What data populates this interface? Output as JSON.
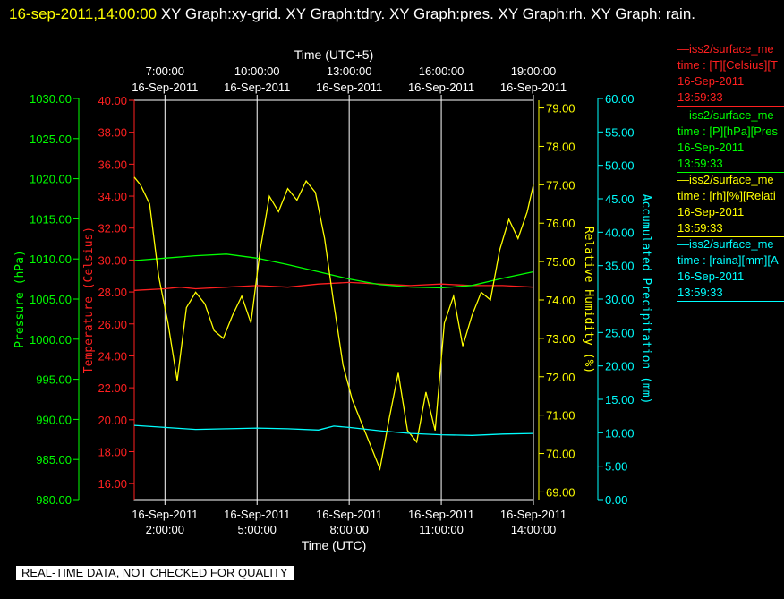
{
  "header": {
    "timestamp": "16-sep-2011,14:00:00",
    "title_rest": " XY Graph:xy-grid.  XY Graph:tdry.  XY Graph:pres.  XY Graph:rh.  XY Graph: rain."
  },
  "footer": {
    "notice": "REAL-TIME DATA, NOT CHECKED FOR QUALITY"
  },
  "legend": [
    {
      "name": "iss2/surface_me",
      "desc": "time : [T][Celsius][T",
      "date": "16-Sep-2011",
      "time": "13:59:33",
      "color": "#ff2020"
    },
    {
      "name": "iss2/surface_me",
      "desc": "time : [P][hPa][Pres",
      "date": "16-Sep-2011",
      "time": "13:59:33",
      "color": "#00ff00"
    },
    {
      "name": "iss2/surface_me",
      "desc": "time : [rh][%][Relati",
      "date": "16-Sep-2011",
      "time": "13:59:33",
      "color": "#ffff00"
    },
    {
      "name": "iss2/surface_me",
      "desc": "time : [raina][mm][A",
      "date": "16-Sep-2011",
      "time": "13:59:33",
      "color": "#00ffff"
    }
  ],
  "colors": {
    "temperature": "#ff2020",
    "pressure": "#00ff00",
    "humidity": "#ffff00",
    "precip": "#00ffff",
    "grid": "#ffffff"
  },
  "chart_data": {
    "type": "line",
    "xlabel": "Time (UTC)",
    "xlabel_top": "Time (UTC+5)",
    "x_range_hours": [
      1.0,
      14.0
    ],
    "x_ticks": [
      {
        "hour": 2,
        "date": "16-Sep-2011",
        "time": "2:00:00"
      },
      {
        "hour": 5,
        "date": "16-Sep-2011",
        "time": "5:00:00"
      },
      {
        "hour": 8,
        "date": "16-Sep-2011",
        "time": "8:00:00"
      },
      {
        "hour": 11,
        "date": "16-Sep-2011",
        "time": "11:00:00"
      },
      {
        "hour": 14,
        "date": "16-Sep-2011",
        "time": "14:00:00"
      }
    ],
    "x_ticks_top": [
      {
        "hour": 2,
        "time": "7:00:00",
        "date": "16-Sep-2011"
      },
      {
        "hour": 5,
        "time": "10:00:00",
        "date": "16-Sep-2011"
      },
      {
        "hour": 8,
        "time": "13:00:00",
        "date": "16-Sep-2011"
      },
      {
        "hour": 11,
        "time": "16:00:00",
        "date": "16-Sep-2011"
      },
      {
        "hour": 14,
        "time": "19:00:00",
        "date": "16-Sep-2011"
      }
    ],
    "axes": {
      "pressure": {
        "label": "Pressure (hPa)",
        "range": [
          980,
          1030
        ],
        "ticks": [
          "980.00",
          "985.00",
          "990.00",
          "995.00",
          "1000.00",
          "1005.00",
          "1010.00",
          "1015.00",
          "1020.00",
          "1025.00",
          "1030.00"
        ]
      },
      "temperature": {
        "label": "Temperature (Celsius)",
        "range": [
          15,
          40
        ],
        "ticks": [
          "16.00",
          "18.00",
          "20.00",
          "22.00",
          "24.00",
          "26.00",
          "28.00",
          "30.00",
          "32.00",
          "34.00",
          "36.00",
          "38.00",
          "40.00"
        ]
      },
      "humidity": {
        "label": "Relative Humidity (%)",
        "range": [
          68.8,
          79.2
        ],
        "ticks": [
          "69.00",
          "70.00",
          "71.00",
          "72.00",
          "73.00",
          "74.00",
          "75.00",
          "76.00",
          "77.00",
          "78.00",
          "79.00"
        ]
      },
      "precip": {
        "label": "Accumulated Precipitation (mm)",
        "range": [
          0,
          60
        ],
        "ticks": [
          "0.00",
          "5.00",
          "10.00",
          "15.00",
          "20.00",
          "25.00",
          "30.00",
          "35.00",
          "40.00",
          "45.00",
          "50.00",
          "55.00",
          "60.00"
        ]
      }
    },
    "series": [
      {
        "name": "iss2/surface_me T",
        "axis": "temperature",
        "color": "#ff2020",
        "x": [
          1.0,
          2.0,
          2.5,
          3.0,
          4.0,
          5.0,
          6.0,
          7.0,
          8.0,
          9.0,
          10.0,
          11.0,
          12.0,
          13.0,
          14.0
        ],
        "y": [
          28.1,
          28.2,
          28.3,
          28.2,
          28.3,
          28.4,
          28.3,
          28.5,
          28.6,
          28.5,
          28.4,
          28.5,
          28.4,
          28.4,
          28.3
        ]
      },
      {
        "name": "iss2/surface_me P",
        "axis": "pressure",
        "color": "#00ff00",
        "x": [
          1.0,
          2.0,
          3.0,
          4.0,
          5.0,
          6.0,
          7.0,
          8.0,
          9.0,
          10.0,
          11.0,
          12.0,
          13.0,
          14.0
        ],
        "y": [
          1009.8,
          1010.1,
          1010.4,
          1010.6,
          1010.1,
          1009.3,
          1008.4,
          1007.5,
          1006.8,
          1006.5,
          1006.4,
          1006.7,
          1007.6,
          1008.4
        ]
      },
      {
        "name": "iss2/surface_me rh",
        "axis": "humidity",
        "color": "#ffff00",
        "x": [
          1.0,
          1.2,
          1.5,
          1.8,
          2.1,
          2.4,
          2.7,
          3.0,
          3.3,
          3.6,
          3.9,
          4.2,
          4.5,
          4.8,
          5.1,
          5.4,
          5.7,
          6.0,
          6.3,
          6.6,
          6.9,
          7.2,
          7.5,
          7.8,
          8.1,
          8.4,
          8.7,
          9.0,
          9.3,
          9.6,
          9.9,
          10.2,
          10.5,
          10.8,
          11.1,
          11.4,
          11.7,
          12.0,
          12.3,
          12.6,
          12.9,
          13.2,
          13.5,
          13.8,
          14.0
        ],
        "y": [
          77.2,
          77.0,
          76.5,
          74.6,
          73.4,
          71.9,
          73.8,
          74.2,
          73.9,
          73.2,
          73.0,
          73.6,
          74.1,
          73.4,
          75.3,
          76.7,
          76.3,
          76.9,
          76.6,
          77.1,
          76.8,
          75.6,
          73.9,
          72.3,
          71.4,
          70.8,
          70.2,
          69.6,
          70.9,
          72.1,
          70.6,
          70.3,
          71.6,
          70.6,
          73.4,
          74.1,
          72.8,
          73.6,
          74.2,
          74.0,
          75.3,
          76.1,
          75.6,
          76.3,
          77.0
        ]
      },
      {
        "name": "iss2/surface_me raina",
        "axis": "precip",
        "color": "#00ffff",
        "x": [
          1.0,
          2.0,
          3.0,
          4.0,
          5.0,
          6.0,
          7.0,
          7.5,
          8.0,
          9.0,
          10.0,
          11.0,
          12.0,
          13.0,
          14.0
        ],
        "y": [
          11.1,
          10.8,
          10.5,
          10.6,
          10.7,
          10.6,
          10.4,
          11.0,
          10.8,
          10.3,
          9.9,
          9.7,
          9.6,
          9.8,
          9.9
        ]
      }
    ]
  }
}
